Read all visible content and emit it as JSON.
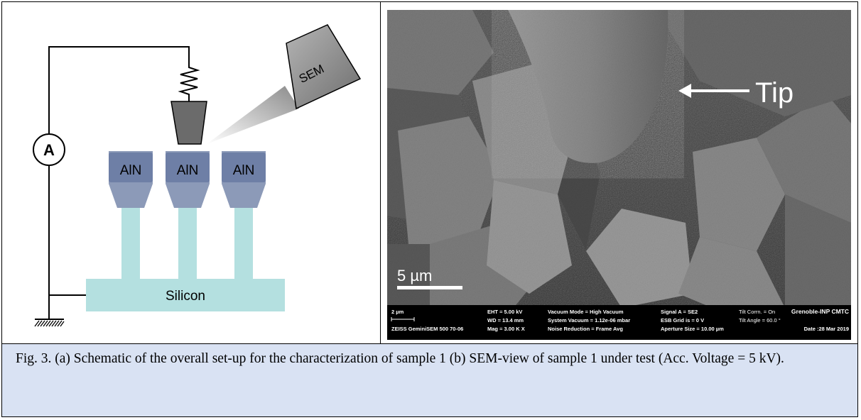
{
  "figure": {
    "schematic": {
      "ammeter_label": "A",
      "sem_label": "SEM",
      "nanowire_labels": [
        "AlN",
        "AlN",
        "AlN"
      ],
      "substrate_label": "Silicon"
    },
    "sem_image": {
      "tip_annotation": "Tip",
      "scale_bar_label": "5 µm",
      "info_bar": {
        "col1": [
          "2 µm",
          "",
          "ZEISS GeminiSEM 500 70-06"
        ],
        "col2": [
          "EHT = 5.00 kV",
          "WD = 13.4 mm",
          "Mag = 3.00 K X"
        ],
        "col3": [
          "Vacuum Mode = High Vacuum",
          "System Vacuum = 1.12e-06 mbar",
          "Noise Reduction = Frame Avg"
        ],
        "col4": [
          "Signal A = SE2",
          "ESB Grid is = 0 V",
          "Aperture Size = 10.00 µm"
        ],
        "col5": [
          "Tilt Corrn. = On",
          "Tilt Angle = 60.0 °",
          ""
        ],
        "col6": [
          "Grenoble-INP CMTC",
          "",
          "Date :28 Mar 2019"
        ]
      }
    },
    "caption": "Fig. 3. (a) Schematic of the overall set-up for the characterization of sample 1 (b) SEM-view of sample 1 under test (Acc. Voltage = 5 kV)."
  }
}
